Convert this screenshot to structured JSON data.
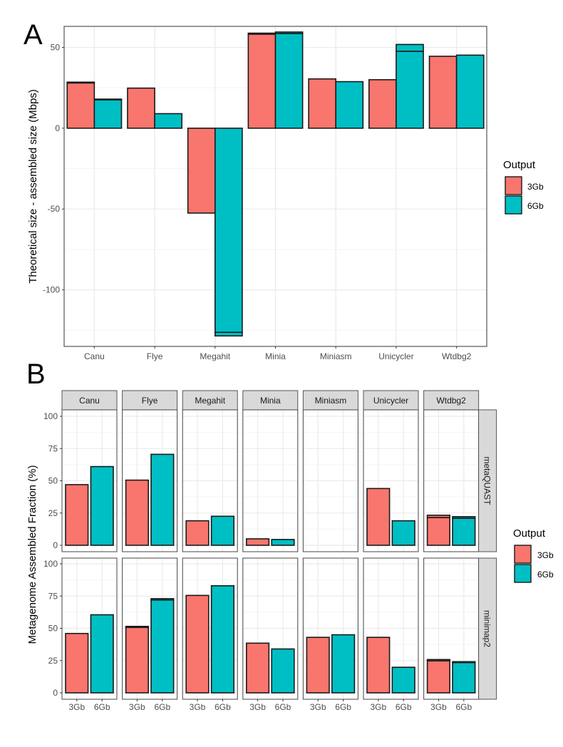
{
  "colors": {
    "3Gb": "#F8766D",
    "6Gb": "#00BFC4",
    "panel_border": "#555555",
    "grid_major": "#EBEBEB",
    "grid_minor": "#F4F4F4",
    "strip_fill": "#D9D9D9",
    "axis_text": "#4D4D4D"
  },
  "chart_data": [
    {
      "panel_label": "A",
      "type": "bar",
      "title": "",
      "xlabel": "",
      "ylabel": "Theoretical size - assembled size (Mbps)",
      "categories": [
        "Canu",
        "Flye",
        "Megahit",
        "Minia",
        "Miniasm",
        "Unicycler",
        "Wtdbg2"
      ],
      "ylim": [
        -135,
        63
      ],
      "yticks": [
        -100,
        -50,
        0,
        50
      ],
      "ytick_labels": [
        "-100",
        "-50",
        "0",
        "50"
      ],
      "grid": true,
      "bar_layout": "dodged by output, stacked replicate segments",
      "series": [
        {
          "name": "3Gb",
          "values": [
            28.5,
            24.8,
            -52.5,
            58.8,
            30.5,
            30.0,
            44.5
          ],
          "segments": [
            [
              28.0,
              0.5
            ],
            [
              24.8
            ],
            [
              -52.5
            ],
            [
              58.2,
              0.6
            ],
            [
              30.5
            ],
            [
              30.0
            ],
            [
              44.5
            ]
          ]
        },
        {
          "name": "6Gb",
          "values": [
            18.0,
            9.0,
            -128.5,
            59.5,
            28.8,
            51.8,
            45.2
          ],
          "segments": [
            [
              17.6,
              0.4
            ],
            [
              9.0
            ],
            [
              -126.3,
              -2.2
            ],
            [
              58.6,
              0.9
            ],
            [
              28.8
            ],
            [
              47.6,
              4.2
            ],
            [
              45.2
            ]
          ]
        }
      ],
      "legend": {
        "title": "Output",
        "entries": [
          "3Gb",
          "6Gb"
        ],
        "placement": "right"
      }
    },
    {
      "panel_label": "B",
      "type": "bar",
      "title": "",
      "xlabel": "",
      "ylabel": "Metagenome Assembled Fraction (%)",
      "facet_columns": [
        "Canu",
        "Flye",
        "Megahit",
        "Minia",
        "Miniasm",
        "Unicycler",
        "Wtdbg2"
      ],
      "facet_rows": [
        "metaQUAST",
        "minimap2"
      ],
      "categories": [
        "3Gb",
        "6Gb"
      ],
      "ylim": [
        0,
        100
      ],
      "yticks": [
        0,
        25,
        50,
        75,
        100
      ],
      "ytick_labels": [
        "0",
        "25",
        "50",
        "75",
        "100"
      ],
      "grid": true,
      "data": {
        "metaQUAST": {
          "Canu": {
            "3Gb": [
              47.0
            ],
            "6Gb": [
              61.0
            ]
          },
          "Flye": {
            "3Gb": [
              50.5
            ],
            "6Gb": [
              70.5
            ]
          },
          "Megahit": {
            "3Gb": [
              19.0
            ],
            "6Gb": [
              22.5
            ]
          },
          "Minia": {
            "3Gb": [
              5.0
            ],
            "6Gb": [
              4.5
            ]
          },
          "Miniasm": {
            "3Gb": [],
            "6Gb": []
          },
          "Unicycler": {
            "3Gb": [
              44.0
            ],
            "6Gb": [
              19.0
            ]
          },
          "Wtdbg2": {
            "3Gb": [
              21.5,
              1.8
            ],
            "6Gb": [
              21.0,
              1.2
            ]
          }
        },
        "minimap2": {
          "Canu": {
            "3Gb": [
              46.0
            ],
            "6Gb": [
              60.5
            ]
          },
          "Flye": {
            "3Gb": [
              50.7,
              0.8
            ],
            "6Gb": [
              72.0,
              1.0
            ]
          },
          "Megahit": {
            "3Gb": [
              75.5
            ],
            "6Gb": [
              83.0
            ]
          },
          "Minia": {
            "3Gb": [
              38.5
            ],
            "6Gb": [
              34.0
            ]
          },
          "Miniasm": {
            "3Gb": [
              43.0
            ],
            "6Gb": [
              45.0
            ]
          },
          "Unicycler": {
            "3Gb": [
              43.0
            ],
            "6Gb": [
              19.8
            ]
          },
          "Wtdbg2": {
            "3Gb": [
              24.8,
              1.0
            ],
            "6Gb": [
              23.5,
              0.6
            ]
          }
        }
      },
      "legend": {
        "title": "Output",
        "entries": [
          "3Gb",
          "6Gb"
        ],
        "placement": "right"
      }
    }
  ]
}
